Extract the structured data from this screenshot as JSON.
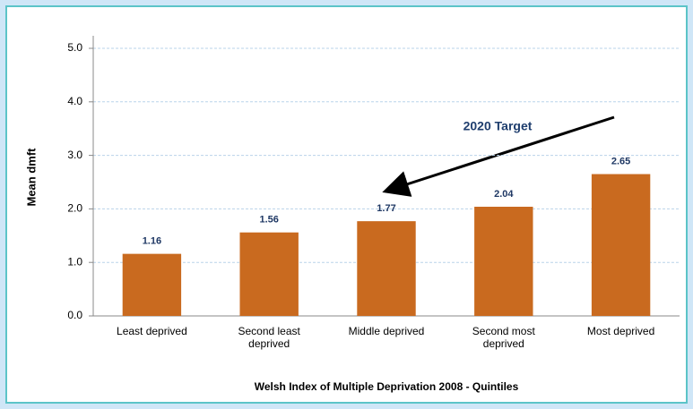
{
  "chart_data": {
    "type": "bar",
    "categories": [
      "Least deprived",
      "Second least deprived",
      "Middle deprived",
      "Second most deprived",
      "Most deprived"
    ],
    "values": [
      1.16,
      1.56,
      1.77,
      2.04,
      2.65
    ],
    "color": "#c96a1f",
    "ylabel": "Mean dmft",
    "xlabel": "Welsh Index of Multiple Deprivation 2008 - Quintiles",
    "annotation": "2020 Target",
    "ylim": [
      0,
      5
    ],
    "yticks": [
      {
        "value": 0,
        "label": "0.0"
      },
      {
        "value": 1,
        "label": "1.0"
      },
      {
        "value": 2,
        "label": "2.0"
      },
      {
        "value": 3,
        "label": "3.0"
      },
      {
        "value": 4,
        "label": "4.0"
      },
      {
        "value": 5,
        "label": "5.0"
      }
    ],
    "grid": true
  }
}
